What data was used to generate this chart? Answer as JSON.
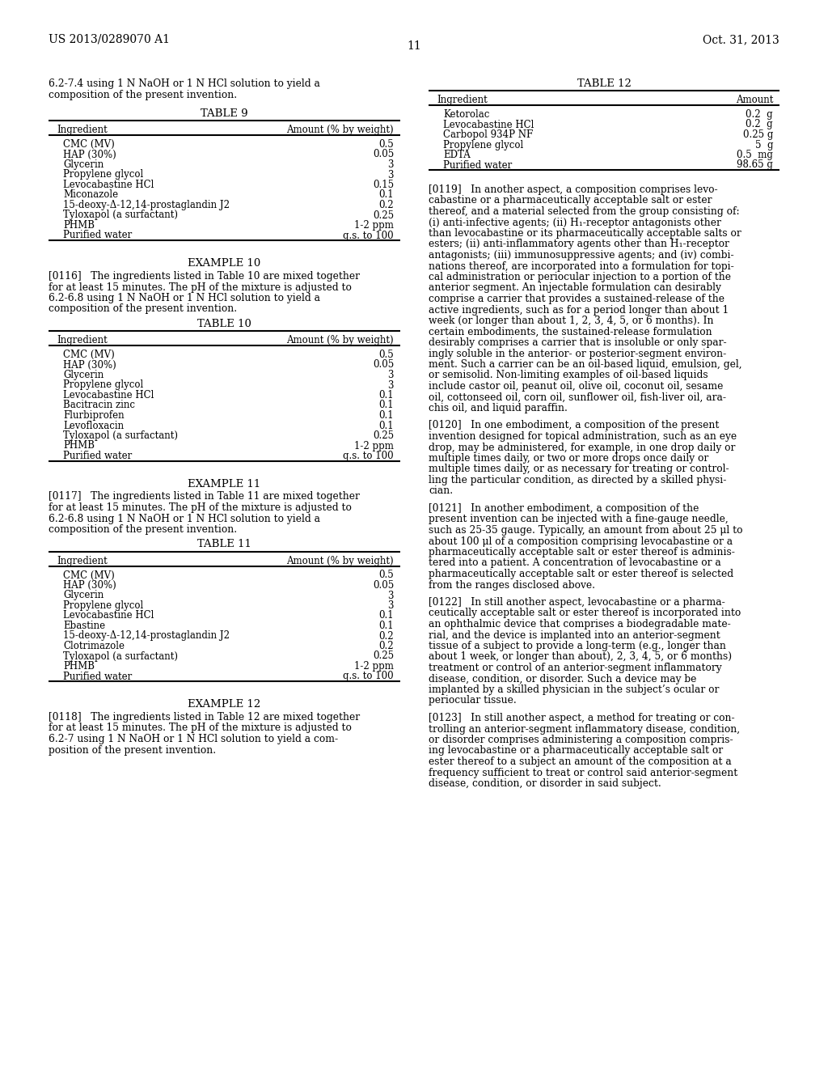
{
  "bg_color": "#ffffff",
  "header_left": "US 2013/0289070 A1",
  "header_right": "Oct. 31, 2013",
  "page_number": "11",
  "table9": {
    "title": "TABLE 9",
    "col1": "Ingredient",
    "col2": "Amount (% by weight)",
    "rows": [
      [
        "CMC (MV)",
        "0.5"
      ],
      [
        "HAP (30%)",
        "0.05"
      ],
      [
        "Glycerin",
        "3"
      ],
      [
        "Propylene glycol",
        "3"
      ],
      [
        "Levocabastine HCl",
        "0.15"
      ],
      [
        "Miconazole",
        "0.1"
      ],
      [
        "15-deoxy-Δ-12,14-prostaglandin J2",
        "0.2"
      ],
      [
        "Tyloxapol (a surfactant)",
        "0.25"
      ],
      [
        "PHMB",
        "1-2 ppm"
      ],
      [
        "Purified water",
        "q.s. to 100"
      ]
    ]
  },
  "table10": {
    "title": "TABLE 10",
    "col1": "Ingredient",
    "col2": "Amount (% by weight)",
    "rows": [
      [
        "CMC (MV)",
        "0.5"
      ],
      [
        "HAP (30%)",
        "0.05"
      ],
      [
        "Glycerin",
        "3"
      ],
      [
        "Propylene glycol",
        "3"
      ],
      [
        "Levocabastine HCl",
        "0.1"
      ],
      [
        "Bacitracin zinc",
        "0.1"
      ],
      [
        "Flurbiprofen",
        "0.1"
      ],
      [
        "Levofloxacin",
        "0.1"
      ],
      [
        "Tyloxapol (a surfactant)",
        "0.25"
      ],
      [
        "PHMB",
        "1-2 ppm"
      ],
      [
        "Purified water",
        "q.s. to 100"
      ]
    ]
  },
  "table11": {
    "title": "TABLE 11",
    "col1": "Ingredient",
    "col2": "Amount (% by weight)",
    "rows": [
      [
        "CMC (MV)",
        "0.5"
      ],
      [
        "HAP (30%)",
        "0.05"
      ],
      [
        "Glycerin",
        "3"
      ],
      [
        "Propylene glycol",
        "3"
      ],
      [
        "Levocabastine HCl",
        "0.1"
      ],
      [
        "Ebastine",
        "0.1"
      ],
      [
        "15-deoxy-Δ-12,14-prostaglandin J2",
        "0.2"
      ],
      [
        "Clotrimazole",
        "0.2"
      ],
      [
        "Tyloxapol (a surfactant)",
        "0.25"
      ],
      [
        "PHMB",
        "1-2 ppm"
      ],
      [
        "Purified water",
        "q.s. to 100"
      ]
    ]
  },
  "table12": {
    "title": "TABLE 12",
    "col1": "Ingredient",
    "col2": "Amount",
    "rows": [
      [
        "Ketorolac",
        "0.2  g"
      ],
      [
        "Levocabastine HCl",
        "0.2  g"
      ],
      [
        "Carbopol 934P NF",
        "0.25 g"
      ],
      [
        "Propylene glycol",
        "5  g"
      ],
      [
        "EDTA",
        "0.5  mg"
      ],
      [
        "Purified water",
        "98.65 g"
      ]
    ]
  },
  "left_col": {
    "intro": [
      "6.2-7.4 using 1 N NaOH or 1 N HCl solution to yield a",
      "composition of the present invention."
    ],
    "example10_title": "EXAMPLE 10",
    "example10_para": [
      "[0116]   The ingredients listed in Table 10 are mixed together",
      "for at least 15 minutes. The pH of the mixture is adjusted to",
      "6.2-6.8 using 1 N NaOH or 1 N HCl solution to yield a",
      "composition of the present invention."
    ],
    "example11_title": "EXAMPLE 11",
    "example11_para": [
      "[0117]   The ingredients listed in Table 11 are mixed together",
      "for at least 15 minutes. The pH of the mixture is adjusted to",
      "6.2-6.8 using 1 N NaOH or 1 N HCl solution to yield a",
      "composition of the present invention."
    ],
    "example12_title": "EXAMPLE 12",
    "example12_para": [
      "[0118]   The ingredients listed in Table 12 are mixed together",
      "for at least 15 minutes. The pH of the mixture is adjusted to",
      "6.2-7 using 1 N NaOH or 1 N HCl solution to yield a com-",
      "position of the present invention."
    ]
  },
  "right_col": {
    "para0119": [
      "[0119]   In another aspect, a composition comprises levo-",
      "cabastine or a pharmaceutically acceptable salt or ester",
      "thereof, and a material selected from the group consisting of:",
      "(i) anti-infective agents; (ii) H₁-receptor antagonists other",
      "than levocabastine or its pharmaceutically acceptable salts or",
      "esters; (ii) anti-inflammatory agents other than H₁-receptor",
      "antagonists; (iii) immunosuppressive agents; and (iv) combi-",
      "nations thereof, are incorporated into a formulation for topi-",
      "cal administration or periocular injection to a portion of the",
      "anterior segment. An injectable formulation can desirably",
      "comprise a carrier that provides a sustained-release of the",
      "active ingredients, such as for a period longer than about 1",
      "week (or longer than about 1, 2, 3, 4, 5, or 6 months). In",
      "certain embodiments, the sustained-release formulation",
      "desirably comprises a carrier that is insoluble or only spar-",
      "ingly soluble in the anterior- or posterior-segment environ-",
      "ment. Such a carrier can be an oil-based liquid, emulsion, gel,",
      "or semisolid. Non-limiting examples of oil-based liquids",
      "include castor oil, peanut oil, olive oil, coconut oil, sesame",
      "oil, cottonseed oil, corn oil, sunflower oil, fish-liver oil, ara-",
      "chis oil, and liquid paraffin."
    ],
    "para0120": [
      "[0120]   In one embodiment, a composition of the present",
      "invention designed for topical administration, such as an eye",
      "drop, may be administered, for example, in one drop daily or",
      "multiple times daily, or two or more drops once daily or",
      "multiple times daily, or as necessary for treating or control-",
      "ling the particular condition, as directed by a skilled physi-",
      "cian."
    ],
    "para0121": [
      "[0121]   In another embodiment, a composition of the",
      "present invention can be injected with a fine-gauge needle,",
      "such as 25-35 gauge. Typically, an amount from about 25 μl to",
      "about 100 μl of a composition comprising levocabastine or a",
      "pharmaceutically acceptable salt or ester thereof is adminis-",
      "tered into a patient. A concentration of levocabastine or a",
      "pharmaceutically acceptable salt or ester thereof is selected",
      "from the ranges disclosed above."
    ],
    "para0122": [
      "[0122]   In still another aspect, levocabastine or a pharma-",
      "ceutically acceptable salt or ester thereof is incorporated into",
      "an ophthalmic device that comprises a biodegradable mate-",
      "rial, and the device is implanted into an anterior-segment",
      "tissue of a subject to provide a long-term (e.g., longer than",
      "about 1 week, or longer than about), 2, 3, 4, 5, or 6 months)",
      "treatment or control of an anterior-segment inflammatory",
      "disease, condition, or disorder. Such a device may be",
      "implanted by a skilled physician in the subject’s ocular or",
      "periocular tissue."
    ],
    "para0123": [
      "[0123]   In still another aspect, a method for treating or con-",
      "trolling an anterior-segment inflammatory disease, condition,",
      "or disorder comprises administering a composition compris-",
      "ing levocabastine or a pharmaceutically acceptable salt or",
      "ester thereof to a subject an amount of the composition at a",
      "frequency sufficient to treat or control said anterior-segment",
      "disease, condition, or disorder in said subject."
    ]
  }
}
